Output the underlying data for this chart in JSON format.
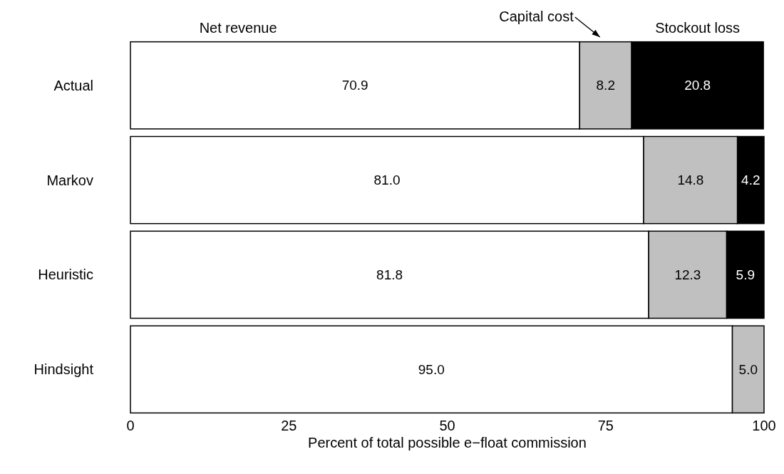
{
  "chart_data": {
    "type": "bar",
    "orientation": "horizontal",
    "stacked": true,
    "xlabel": "Percent of total possible e−float commission",
    "categories": [
      "Actual",
      "Markov",
      "Heuristic",
      "Hindsight"
    ],
    "series": [
      {
        "name": "Net revenue",
        "color": "#ffffff",
        "values": [
          70.9,
          81.0,
          81.8,
          95.0
        ],
        "value_labels": [
          "70.9",
          "81.0",
          "81.8",
          "95.0"
        ]
      },
      {
        "name": "Capital cost",
        "color": "#c0c0c0",
        "values": [
          8.2,
          14.8,
          12.3,
          5.0
        ],
        "value_labels": [
          "8.2",
          "14.8",
          "12.3",
          "5.0"
        ]
      },
      {
        "name": "Stockout loss",
        "color": "#000000",
        "values": [
          20.8,
          4.2,
          5.9,
          null
        ],
        "value_labels": [
          "20.8",
          "4.2",
          "5.9",
          null
        ]
      }
    ],
    "xlim": [
      0,
      100
    ],
    "xticks": [
      0,
      25,
      50,
      75,
      100
    ],
    "grid": false
  }
}
